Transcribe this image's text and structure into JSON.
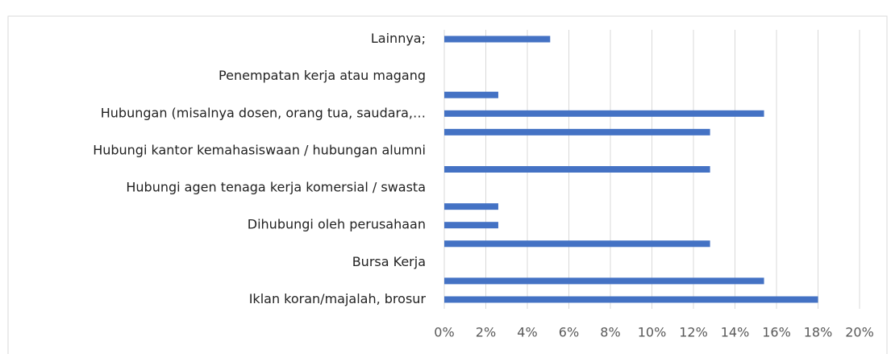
{
  "chart_data": {
    "type": "barh",
    "categories": [
      "Lainnya;",
      null,
      "Penempatan kerja atau magang",
      null,
      "Hubungan (misalnya dosen, orang tua, saudara,…",
      null,
      "Hubungi kantor kemahasiswaan / hubungan alumni",
      null,
      "Hubungi agen tenaga kerja komersial / swasta",
      null,
      "Dihubungi oleh perusahaan",
      null,
      "Bursa Kerja",
      null,
      "Iklan koran/majalah, brosur"
    ],
    "values": [
      5.1,
      0,
      0,
      2.6,
      15.4,
      12.8,
      0,
      12.8,
      0,
      2.6,
      2.6,
      12.8,
      0,
      15.4,
      18
    ],
    "color": "#4472c4",
    "xlim": [
      0,
      20
    ],
    "xticks": [
      {
        "value": 0,
        "label": "0%"
      },
      {
        "value": 2,
        "label": "2%"
      },
      {
        "value": 4,
        "label": "4%"
      },
      {
        "value": 6,
        "label": "6%"
      },
      {
        "value": 8,
        "label": "8%"
      },
      {
        "value": 10,
        "label": "10%"
      },
      {
        "value": 12,
        "label": "12%"
      },
      {
        "value": 14,
        "label": "14%"
      },
      {
        "value": 16,
        "label": "16%"
      },
      {
        "value": 18,
        "label": "18%"
      },
      {
        "value": 20,
        "label": "20%"
      }
    ],
    "grid": true
  }
}
